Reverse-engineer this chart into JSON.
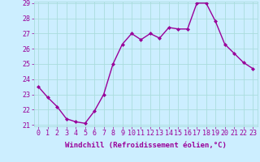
{
  "x": [
    0,
    1,
    2,
    3,
    4,
    5,
    6,
    7,
    8,
    9,
    10,
    11,
    12,
    13,
    14,
    15,
    16,
    17,
    18,
    19,
    20,
    21,
    22,
    23
  ],
  "y": [
    23.5,
    22.8,
    22.2,
    21.4,
    21.2,
    21.1,
    21.9,
    23.0,
    25.0,
    26.3,
    27.0,
    26.6,
    27.0,
    26.7,
    27.4,
    27.3,
    27.3,
    29.0,
    29.0,
    27.8,
    26.3,
    25.7,
    25.1,
    24.7
  ],
  "line_color": "#990099",
  "marker": "D",
  "marker_size": 2,
  "bg_color": "#cceeff",
  "grid_color": "#aadddd",
  "xlabel": "Windchill (Refroidissement éolien,°C)",
  "ylim": [
    21,
    29
  ],
  "xlim": [
    -0.5,
    23.5
  ],
  "yticks": [
    21,
    22,
    23,
    24,
    25,
    26,
    27,
    28,
    29
  ],
  "xticks": [
    0,
    1,
    2,
    3,
    4,
    5,
    6,
    7,
    8,
    9,
    10,
    11,
    12,
    13,
    14,
    15,
    16,
    17,
    18,
    19,
    20,
    21,
    22,
    23
  ],
  "xlabel_fontsize": 6.5,
  "tick_fontsize": 6,
  "line_width": 1.0
}
